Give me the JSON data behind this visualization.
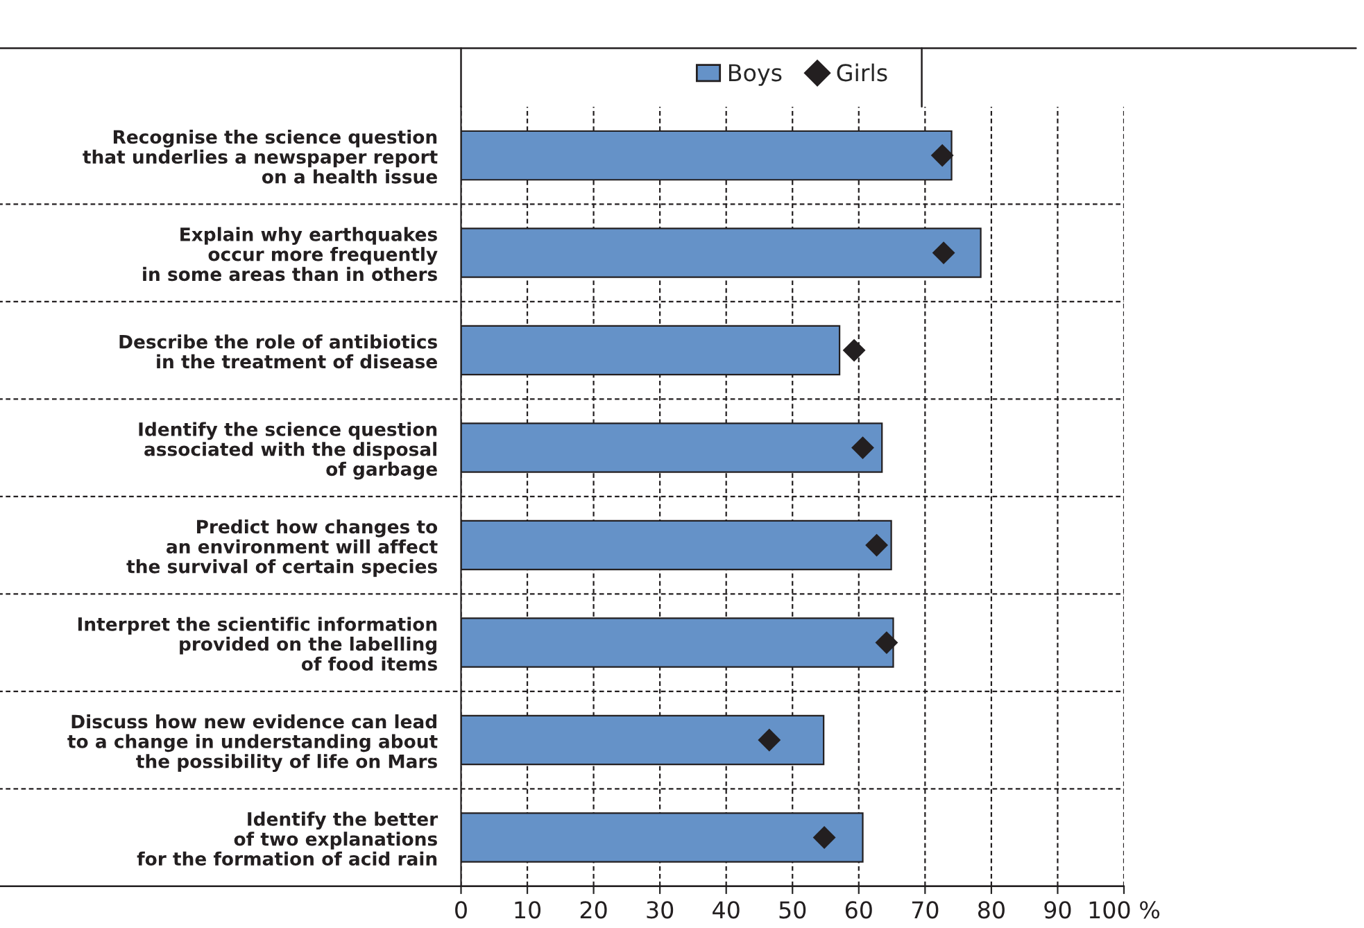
{
  "chart_data": {
    "type": "bar",
    "orientation": "horizontal",
    "categories": [
      "Recognise the science question\nthat underlies a newspaper report\non a health issue",
      "Explain why earthquakes\noccur more frequently\nin some areas than in others",
      "Describe the role of antibiotics\nin the treatment of disease",
      "Identify the science question\nassociated with the disposal\nof garbage",
      "Predict how changes to\nan environment will affect\nthe survival of certain species",
      "Interpret the scientific information\nprovided on the labelling\nof food items",
      "Discuss how new evidence can lead\nto a change in understanding about\nthe possibility of life on Mars",
      "Identify the better\nof two explanations\nfor the formation of acid rain"
    ],
    "series": [
      {
        "name": "Boys",
        "color": "#6592c8",
        "values": [
          74.0,
          78.4,
          57.1,
          63.5,
          64.9,
          65.2,
          54.7,
          60.6
        ]
      },
      {
        "name": "Girls",
        "type": "scatter",
        "color": "#231f20",
        "values": [
          72.6,
          72.8,
          59.3,
          60.6,
          62.7,
          64.2,
          46.5,
          54.8
        ]
      }
    ],
    "xlim": [
      0,
      100
    ],
    "xticks": [
      0,
      10,
      20,
      30,
      40,
      50,
      60,
      70,
      80,
      90,
      {
        "value": 100,
        "label": "100 %"
      }
    ],
    "grid": "x",
    "legend": "top",
    "marker": "diamond"
  }
}
